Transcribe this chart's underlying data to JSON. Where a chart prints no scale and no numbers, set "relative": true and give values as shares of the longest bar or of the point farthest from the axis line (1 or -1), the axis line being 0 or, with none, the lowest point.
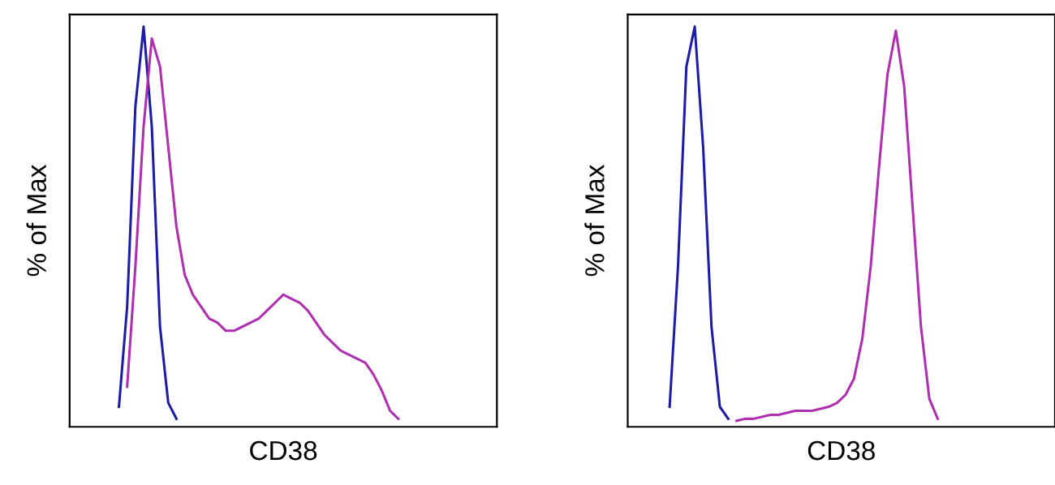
{
  "chart_data": [
    {
      "type": "line",
      "relative": true,
      "xlabel": "CD38",
      "ylabel": "% of Max",
      "tick_labels": false,
      "grid": false,
      "legend": false,
      "categories": [
        null,
        null,
        null,
        null,
        null,
        null,
        null,
        null,
        null,
        null,
        null,
        null,
        null,
        null,
        null,
        null,
        null,
        null,
        null,
        null,
        null,
        null,
        null,
        null,
        null,
        null,
        null,
        null,
        null,
        null,
        null,
        null,
        null,
        null,
        null,
        null,
        null,
        null,
        null,
        null,
        null,
        null,
        null,
        null,
        null,
        null,
        null,
        null,
        null,
        null,
        null,
        null,
        null
      ],
      "series": [
        {
          "color": "#1c1ca8",
          "values": [
            null,
            null,
            null,
            null,
            null,
            null,
            0.05,
            0.3,
            0.8,
            1.0,
            0.75,
            0.25,
            0.06,
            0.02,
            null,
            null,
            null,
            null,
            null,
            null,
            null,
            null,
            null,
            null,
            null,
            null,
            null,
            null,
            null,
            null,
            null,
            null,
            null,
            null,
            null,
            null,
            null,
            null,
            null,
            null,
            null,
            null,
            null,
            null,
            null,
            null,
            null,
            null,
            null,
            null,
            null,
            null,
            null
          ]
        },
        {
          "color": "#b02fb0",
          "values": [
            null,
            null,
            null,
            null,
            null,
            null,
            null,
            0.1,
            0.4,
            0.75,
            0.97,
            0.9,
            0.7,
            0.5,
            0.38,
            0.33,
            0.3,
            0.27,
            0.26,
            0.24,
            0.24,
            0.25,
            0.26,
            0.27,
            0.29,
            0.31,
            0.33,
            0.32,
            0.31,
            0.29,
            0.26,
            0.23,
            0.21,
            0.19,
            0.18,
            0.17,
            0.16,
            0.13,
            0.09,
            0.04,
            0.02,
            null,
            null,
            null,
            null,
            null,
            null,
            null,
            null,
            null,
            null,
            null,
            null
          ]
        }
      ]
    },
    {
      "type": "line",
      "relative": true,
      "xlabel": "CD38",
      "ylabel": "% of Max",
      "tick_labels": false,
      "grid": false,
      "legend": false,
      "categories": [
        null,
        null,
        null,
        null,
        null,
        null,
        null,
        null,
        null,
        null,
        null,
        null,
        null,
        null,
        null,
        null,
        null,
        null,
        null,
        null,
        null,
        null,
        null,
        null,
        null,
        null,
        null,
        null,
        null,
        null,
        null,
        null,
        null,
        null,
        null,
        null,
        null,
        null,
        null,
        null,
        null,
        null,
        null,
        null,
        null,
        null,
        null,
        null,
        null,
        null,
        null,
        null
      ],
      "series": [
        {
          "color": "#1c1ca8",
          "values": [
            null,
            null,
            null,
            null,
            null,
            0.05,
            0.4,
            0.9,
            1.0,
            0.7,
            0.25,
            0.05,
            0.02,
            null,
            null,
            null,
            null,
            null,
            null,
            null,
            null,
            null,
            null,
            null,
            null,
            null,
            null,
            null,
            null,
            null,
            null,
            null,
            null,
            null,
            null,
            null,
            null,
            null,
            null,
            null,
            null,
            null,
            null,
            null,
            null,
            null,
            null,
            null,
            null,
            null,
            null,
            null
          ]
        },
        {
          "color": "#b02fb0",
          "values": [
            null,
            null,
            null,
            null,
            null,
            null,
            null,
            null,
            null,
            null,
            null,
            null,
            null,
            0.015,
            0.02,
            0.02,
            0.025,
            0.03,
            0.03,
            0.035,
            0.04,
            0.04,
            0.04,
            0.045,
            0.05,
            0.06,
            0.08,
            0.12,
            0.22,
            0.4,
            0.65,
            0.88,
            0.99,
            0.85,
            0.55,
            0.25,
            0.07,
            0.02,
            null,
            null,
            null,
            null,
            null,
            null,
            null,
            null,
            null,
            null,
            null,
            null,
            null,
            null
          ]
        }
      ]
    }
  ]
}
